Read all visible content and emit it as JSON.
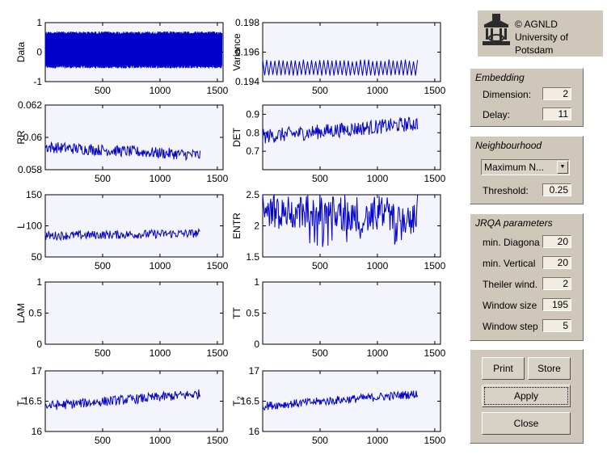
{
  "logo": {
    "icon": "university-building-icon",
    "lines": [
      "© AGNLD",
      "University of",
      "Potsdam"
    ]
  },
  "embedding": {
    "title": "Embedding",
    "dimension_label": "Dimension:",
    "dimension_value": "2",
    "delay_label": "Delay:",
    "delay_value": "11"
  },
  "neighbourhood": {
    "title": "Neighbourhood",
    "method_selected": "Maximum N...",
    "threshold_label": "Threshold:",
    "threshold_value": "0.25"
  },
  "jrqa": {
    "title": "JRQA parameters",
    "params": [
      {
        "label": "min. Diagona",
        "value": "20"
      },
      {
        "label": "min. Vertical",
        "value": "20"
      },
      {
        "label": "Theiler wind.",
        "value": "2"
      },
      {
        "label": "Window size",
        "value": "195"
      },
      {
        "label": "Window step",
        "value": "5"
      }
    ]
  },
  "buttons": {
    "print": "Print",
    "store": "Store",
    "apply": "Apply",
    "close": "Close"
  },
  "colors": {
    "line": "#0000cc",
    "axes_bg": "#f4f4fc",
    "panel": "#cfc7ba"
  },
  "chart_data": [
    {
      "type": "line",
      "ylabel": "Data",
      "xlim": [
        0,
        1550
      ],
      "ylim": [
        -1,
        1
      ],
      "yticks": [
        "-1",
        "0",
        "1"
      ],
      "xticks": [
        "500",
        "1000",
        "1500"
      ],
      "series": [
        {
          "x_range": [
            0,
            1540
          ],
          "pattern": "dense_oscillation",
          "min": -0.55,
          "max": 0.7
        }
      ]
    },
    {
      "type": "line",
      "ylabel": "Variance",
      "xlim": [
        0,
        1550
      ],
      "ylim": [
        0.194,
        0.198
      ],
      "yticks": [
        "0.194",
        "0.196",
        "0.198"
      ],
      "xticks": [
        "500",
        "1000",
        "1500"
      ],
      "series": [
        {
          "x_range": [
            0,
            1350
          ],
          "pattern": "square_oscillation",
          "min": 0.1944,
          "max": 0.1955
        }
      ]
    },
    {
      "type": "line",
      "ylabel": "RR",
      "xlim": [
        0,
        1550
      ],
      "ylim": [
        0.058,
        0.062
      ],
      "yticks": [
        "0.058",
        "0.06",
        "0.062"
      ],
      "xticks": [
        "500",
        "1000",
        "1500"
      ],
      "series": [
        {
          "x_range": [
            0,
            1350
          ],
          "pattern": "noisy_trend",
          "start": 0.0594,
          "end": 0.0589,
          "noise": 0.00035
        }
      ]
    },
    {
      "type": "line",
      "ylabel": "DET",
      "xlim": [
        0,
        1550
      ],
      "ylim": [
        0.6,
        0.95
      ],
      "yticks": [
        "0.7",
        "0.8",
        "0.9"
      ],
      "xticks": [
        "500",
        "1000",
        "1500"
      ],
      "series": [
        {
          "x_range": [
            0,
            1350
          ],
          "pattern": "noisy_trend",
          "start": 0.78,
          "end": 0.85,
          "noise": 0.04
        }
      ]
    },
    {
      "type": "line",
      "ylabel": "L",
      "xlim": [
        0,
        1550
      ],
      "ylim": [
        50,
        150
      ],
      "yticks": [
        "50",
        "100",
        "150"
      ],
      "xticks": [
        "500",
        "1000",
        "1500"
      ],
      "series": [
        {
          "x_range": [
            0,
            1350
          ],
          "pattern": "noisy_trend",
          "start": 84,
          "end": 88,
          "noise": 7
        }
      ]
    },
    {
      "type": "line",
      "ylabel": "ENTR",
      "xlim": [
        0,
        1550
      ],
      "ylim": [
        1.5,
        2.5
      ],
      "yticks": [
        "1.5",
        "2",
        "2.5"
      ],
      "xticks": [
        "500",
        "1000",
        "1500"
      ],
      "series": [
        {
          "x_range": [
            0,
            1350
          ],
          "pattern": "spiky",
          "start": 2.2,
          "end": 2.1,
          "noise": 0.25,
          "dips_to": 1.65
        }
      ]
    },
    {
      "type": "line",
      "ylabel": "LAM",
      "xlim": [
        0,
        1550
      ],
      "ylim": [
        0,
        1
      ],
      "yticks": [
        "0",
        "0.5",
        "1"
      ],
      "xticks": [
        "500",
        "1000",
        "1500"
      ],
      "series": []
    },
    {
      "type": "line",
      "ylabel": "TT",
      "xlim": [
        0,
        1550
      ],
      "ylim": [
        0,
        1
      ],
      "yticks": [
        "0",
        "0.5",
        "1"
      ],
      "xticks": [
        "500",
        "1000",
        "1500"
      ],
      "series": []
    },
    {
      "type": "line",
      "ylabel": "T",
      "ylabel_sub": "1",
      "xlim": [
        0,
        1550
      ],
      "ylim": [
        16,
        17
      ],
      "yticks": [
        "16",
        "16.5",
        "17"
      ],
      "xticks": [
        "500",
        "1000",
        "1500"
      ],
      "series": [
        {
          "x_range": [
            0,
            1350
          ],
          "pattern": "noisy_trend",
          "start": 16.42,
          "end": 16.62,
          "noise": 0.08
        }
      ]
    },
    {
      "type": "line",
      "ylabel": "T",
      "ylabel_sub": "2",
      "xlim": [
        0,
        1550
      ],
      "ylim": [
        16,
        17
      ],
      "yticks": [
        "16",
        "16.5",
        "17"
      ],
      "xticks": [
        "500",
        "1000",
        "1500"
      ],
      "series": [
        {
          "x_range": [
            0,
            1350
          ],
          "pattern": "noisy_trend",
          "start": 16.42,
          "end": 16.62,
          "noise": 0.07
        }
      ]
    }
  ]
}
